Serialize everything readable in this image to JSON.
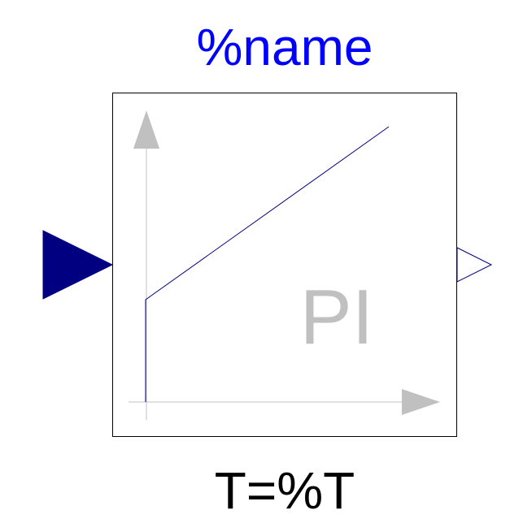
{
  "block": {
    "name_label": "%name",
    "parameter_label": "T=%T",
    "type_text": "PI",
    "icon_name": "pi-controller-step-response-icon"
  },
  "ports": {
    "input": {
      "icon": "input-port-triangle-filled"
    },
    "output": {
      "icon": "output-port-triangle-outline"
    }
  },
  "colors": {
    "name_label": "#0000ff",
    "parameter_label": "#000000",
    "block_border": "#000000",
    "axis": "#c0c0c0",
    "response_curve": "#000080",
    "input_port": "#000080",
    "output_port": "#000080",
    "type_text": "#c0c0c0"
  }
}
